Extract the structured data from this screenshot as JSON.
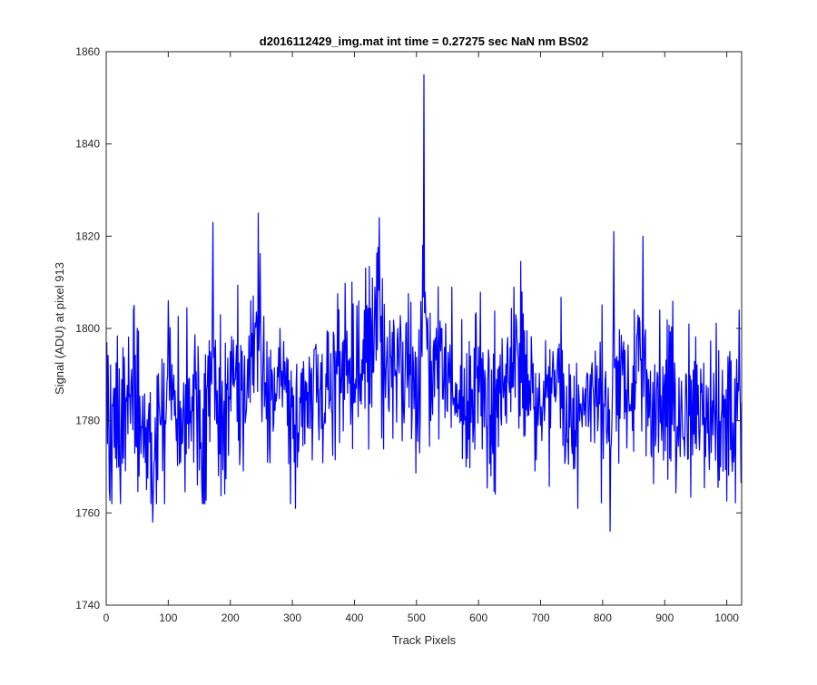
{
  "chart_data": {
    "type": "line",
    "title": "d2016112429_img.mat int time = 0.27275 sec  NaN nm BS02",
    "xlabel": "Track Pixels",
    "ylabel": "Signal (ADU) at pixel 913",
    "xlim": [
      0,
      1024
    ],
    "ylim": [
      1740,
      1860
    ],
    "xticks": [
      0,
      100,
      200,
      300,
      400,
      500,
      600,
      700,
      800,
      900,
      1000
    ],
    "yticks": [
      1740,
      1760,
      1780,
      1800,
      1820,
      1840,
      1860
    ],
    "grid": false,
    "legend": "none",
    "series": [
      {
        "color": "#0000ff",
        "x_start": 1,
        "x_step": 1,
        "noise_seed": 913,
        "anchors": [
          [
            1,
            1797
          ],
          [
            5,
            1765
          ],
          [
            12,
            1787
          ],
          [
            20,
            1770
          ],
          [
            30,
            1786
          ],
          [
            45,
            1805
          ],
          [
            60,
            1772
          ],
          [
            75,
            1758
          ],
          [
            85,
            1784
          ],
          [
            95,
            1780
          ],
          [
            100,
            1806
          ],
          [
            120,
            1771
          ],
          [
            140,
            1790
          ],
          [
            155,
            1762
          ],
          [
            165,
            1781
          ],
          [
            172,
            1823
          ],
          [
            180,
            1778
          ],
          [
            200,
            1795
          ],
          [
            220,
            1782
          ],
          [
            245,
            1825
          ],
          [
            260,
            1771
          ],
          [
            280,
            1800
          ],
          [
            305,
            1761
          ],
          [
            330,
            1790
          ],
          [
            350,
            1779
          ],
          [
            370,
            1795
          ],
          [
            400,
            1788
          ],
          [
            420,
            1805
          ],
          [
            440,
            1824
          ],
          [
            450,
            1785
          ],
          [
            470,
            1800
          ],
          [
            490,
            1790
          ],
          [
            505,
            1773
          ],
          [
            512,
            1855
          ],
          [
            520,
            1790
          ],
          [
            540,
            1800
          ],
          [
            560,
            1785
          ],
          [
            580,
            1770
          ],
          [
            600,
            1796
          ],
          [
            620,
            1768
          ],
          [
            640,
            1785
          ],
          [
            660,
            1803
          ],
          [
            680,
            1790
          ],
          [
            700,
            1779
          ],
          [
            720,
            1795
          ],
          [
            740,
            1772
          ],
          [
            760,
            1761
          ],
          [
            780,
            1790
          ],
          [
            800,
            1782
          ],
          [
            812,
            1756
          ],
          [
            818,
            1821
          ],
          [
            840,
            1785
          ],
          [
            865,
            1820
          ],
          [
            880,
            1782
          ],
          [
            900,
            1790
          ],
          [
            930,
            1776
          ],
          [
            960,
            1788
          ],
          [
            990,
            1770
          ],
          [
            1005,
            1795
          ],
          [
            1012,
            1773
          ],
          [
            1020,
            1804
          ],
          [
            1024,
            1784
          ]
        ]
      }
    ]
  }
}
